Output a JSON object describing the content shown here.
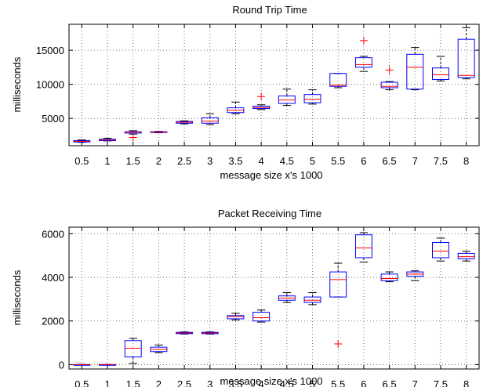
{
  "chart_data": [
    {
      "type": "box",
      "title": "Round Trip Time",
      "xlabel": "message size x's 1000",
      "ylabel": "milliseconds",
      "categories": [
        "0.5",
        "1",
        "1.5",
        "2",
        "2.5",
        "3",
        "3.5",
        "4",
        "4.5",
        "5",
        "5.5",
        "6",
        "6.5",
        "7",
        "7.5",
        "8"
      ],
      "ylim": [
        1000,
        18800
      ],
      "yticks": [
        5000,
        10000,
        15000
      ],
      "grid": true,
      "boxes": [
        {
          "min": 1500,
          "q1": 1550,
          "median": 1650,
          "q3": 1750,
          "max": 1850,
          "outliers": []
        },
        {
          "min": 1700,
          "q1": 1750,
          "median": 1850,
          "q3": 1950,
          "max": 2100,
          "outliers": []
        },
        {
          "min": 2700,
          "q1": 2850,
          "median": 3000,
          "q3": 3050,
          "max": 3200,
          "outliers": [
            2200
          ]
        },
        {
          "min": 2900,
          "q1": 2950,
          "median": 3000,
          "q3": 3050,
          "max": 3100,
          "outliers": []
        },
        {
          "min": 4200,
          "q1": 4300,
          "median": 4450,
          "q3": 4550,
          "max": 4650,
          "outliers": []
        },
        {
          "min": 4100,
          "q1": 4300,
          "median": 4600,
          "q3": 5100,
          "max": 5700,
          "outliers": []
        },
        {
          "min": 5700,
          "q1": 5850,
          "median": 6200,
          "q3": 6550,
          "max": 7400,
          "outliers": []
        },
        {
          "min": 6300,
          "q1": 6450,
          "median": 6600,
          "q3": 6800,
          "max": 7000,
          "outliers": [
            8200
          ]
        },
        {
          "min": 6900,
          "q1": 7200,
          "median": 7700,
          "q3": 8300,
          "max": 9300,
          "outliers": []
        },
        {
          "min": 7100,
          "q1": 7300,
          "median": 7800,
          "q3": 8500,
          "max": 9200,
          "outliers": []
        },
        {
          "min": 9500,
          "q1": 9700,
          "median": 9850,
          "q3": 11600,
          "max": 11600,
          "outliers": []
        },
        {
          "min": 11900,
          "q1": 12500,
          "median": 12900,
          "q3": 13900,
          "max": 14100,
          "outliers": [
            16400
          ]
        },
        {
          "min": 9200,
          "q1": 9500,
          "median": 9700,
          "q3": 10300,
          "max": 10400,
          "outliers": [
            12100
          ]
        },
        {
          "min": 9200,
          "q1": 9300,
          "median": 12500,
          "q3": 14400,
          "max": 15400,
          "outliers": []
        },
        {
          "min": 10500,
          "q1": 10700,
          "median": 11400,
          "q3": 12400,
          "max": 14100,
          "outliers": []
        },
        {
          "min": 10800,
          "q1": 11000,
          "median": 11300,
          "q3": 16600,
          "max": 18300,
          "outliers": []
        }
      ]
    },
    {
      "type": "box",
      "title": "Packet Receiving Time",
      "xlabel": "message size x's 1000",
      "ylabel": "milliseconds",
      "categories": [
        "0.5",
        "1",
        "1.5",
        "2",
        "2.5",
        "3",
        "3.5",
        "4",
        "4.5",
        "5",
        "5.5",
        "6",
        "6.5",
        "7",
        "7.5",
        "8"
      ],
      "ylim": [
        -200,
        6300
      ],
      "yticks": [
        0,
        2000,
        4000,
        6000
      ],
      "grid": true,
      "boxes": [
        {
          "min": -10,
          "q1": -5,
          "median": 0,
          "q3": 5,
          "max": 10,
          "outliers": []
        },
        {
          "min": -10,
          "q1": -5,
          "median": 0,
          "q3": 5,
          "max": 10,
          "outliers": []
        },
        {
          "min": 50,
          "q1": 350,
          "median": 750,
          "q3": 1100,
          "max": 1200,
          "outliers": []
        },
        {
          "min": 550,
          "q1": 600,
          "median": 700,
          "q3": 800,
          "max": 900,
          "outliers": []
        },
        {
          "min": 1400,
          "q1": 1420,
          "median": 1450,
          "q3": 1480,
          "max": 1500,
          "outliers": []
        },
        {
          "min": 1400,
          "q1": 1420,
          "median": 1450,
          "q3": 1480,
          "max": 1500,
          "outliers": []
        },
        {
          "min": 2050,
          "q1": 2100,
          "median": 2200,
          "q3": 2250,
          "max": 2350,
          "outliers": []
        },
        {
          "min": 1950,
          "q1": 2000,
          "median": 2150,
          "q3": 2400,
          "max": 2500,
          "outliers": []
        },
        {
          "min": 2850,
          "q1": 2950,
          "median": 3050,
          "q3": 3150,
          "max": 3300,
          "outliers": []
        },
        {
          "min": 2750,
          "q1": 2850,
          "median": 2950,
          "q3": 3100,
          "max": 3300,
          "outliers": []
        },
        {
          "min": 3100,
          "q1": 3100,
          "median": 3900,
          "q3": 4250,
          "max": 4650,
          "outliers": [
            950
          ]
        },
        {
          "min": 4700,
          "q1": 4900,
          "median": 5350,
          "q3": 5950,
          "max": 6050,
          "outliers": []
        },
        {
          "min": 3800,
          "q1": 3850,
          "median": 3950,
          "q3": 4150,
          "max": 4250,
          "outliers": []
        },
        {
          "min": 3850,
          "q1": 4050,
          "median": 4150,
          "q3": 4250,
          "max": 4300,
          "outliers": []
        },
        {
          "min": 4750,
          "q1": 4900,
          "median": 5200,
          "q3": 5600,
          "max": 5800,
          "outliers": []
        },
        {
          "min": 4750,
          "q1": 4850,
          "median": 4950,
          "q3": 5100,
          "max": 5200,
          "outliers": []
        }
      ]
    }
  ],
  "colors": {
    "box": "#0000ff",
    "median": "#ff0000",
    "whisker": "#000000",
    "outlier": "#ff0000"
  }
}
